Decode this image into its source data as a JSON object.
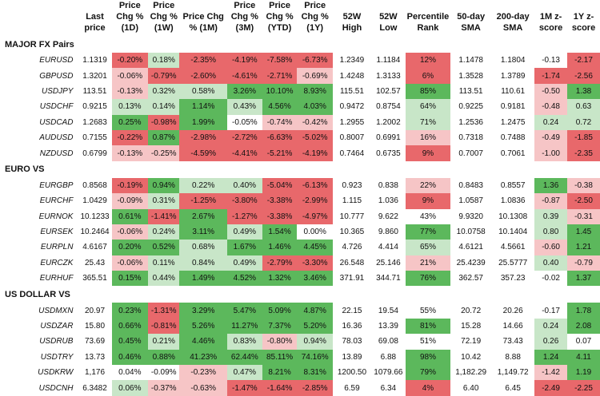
{
  "columns": [
    "",
    "Last price",
    "Price Chg % (1D)",
    "Price Chg % (1W)",
    "Price Chg % (1M)",
    "Price Chg % (3M)",
    "Price Chg % (YTD)",
    "Price Chg % (1Y)",
    "52W High",
    "52W Low",
    "Percentile Rank",
    "50-day SMA",
    "200-day SMA",
    "1M z-score",
    "1Y z-score"
  ],
  "colors": {
    "strong_green": "#5cb85c",
    "light_green": "#c8e6c8",
    "strong_red": "#e8686b",
    "light_red": "#f6c5c6"
  },
  "groups": [
    {
      "title": "MAJOR FX Pairs",
      "rows": [
        {
          "name": "EURUSD",
          "values": [
            "1.1319",
            "-0.20%",
            "0.18%",
            "-2.35%",
            "-4.19%",
            "-7.58%",
            "-6.73%",
            "1.2349",
            "1.1184",
            "12%",
            "1.1478",
            "1.1804",
            "-0.13",
            "-2.17"
          ]
        },
        {
          "name": "GBPUSD",
          "values": [
            "1.3201",
            "-0.06%",
            "-0.79%",
            "-2.60%",
            "-4.61%",
            "-2.71%",
            "-0.69%",
            "1.4248",
            "1.3133",
            "6%",
            "1.3528",
            "1.3789",
            "-1.74",
            "-2.56"
          ]
        },
        {
          "name": "USDJPY",
          "values": [
            "113.51",
            "-0.13%",
            "0.32%",
            "0.58%",
            "3.26%",
            "10.10%",
            "8.93%",
            "115.51",
            "102.57",
            "85%",
            "113.51",
            "110.61",
            "-0.50",
            "1.38"
          ]
        },
        {
          "name": "USDCHF",
          "values": [
            "0.9215",
            "0.13%",
            "0.14%",
            "1.14%",
            "0.43%",
            "4.56%",
            "4.03%",
            "0.9472",
            "0.8754",
            "64%",
            "0.9225",
            "0.9181",
            "-0.48",
            "0.63"
          ]
        },
        {
          "name": "USDCAD",
          "values": [
            "1.2683",
            "0.25%",
            "-0.98%",
            "1.99%",
            "-0.05%",
            "-0.74%",
            "-0.42%",
            "1.2955",
            "1.2002",
            "71%",
            "1.2536",
            "1.2475",
            "0.24",
            "0.72"
          ]
        },
        {
          "name": "AUDUSD",
          "values": [
            "0.7155",
            "-0.22%",
            "0.87%",
            "-2.98%",
            "-2.72%",
            "-6.63%",
            "-5.02%",
            "0.8007",
            "0.6991",
            "16%",
            "0.7318",
            "0.7488",
            "-0.49",
            "-1.85"
          ]
        },
        {
          "name": "NZDUSD",
          "values": [
            "0.6799",
            "-0.13%",
            "-0.25%",
            "-4.59%",
            "-4.41%",
            "-5.21%",
            "-4.19%",
            "0.7464",
            "0.6735",
            "9%",
            "0.7007",
            "0.7061",
            "-1.00",
            "-2.35"
          ]
        }
      ]
    },
    {
      "title": "EURO VS",
      "rows": [
        {
          "name": "EURGBP",
          "values": [
            "0.8568",
            "-0.19%",
            "0.94%",
            "0.22%",
            "0.40%",
            "-5.04%",
            "-6.13%",
            "0.923",
            "0.838",
            "22%",
            "0.8483",
            "0.8557",
            "1.36",
            "-0.38"
          ]
        },
        {
          "name": "EURCHF",
          "values": [
            "1.0429",
            "-0.09%",
            "0.31%",
            "-1.25%",
            "-3.80%",
            "-3.38%",
            "-2.99%",
            "1.115",
            "1.036",
            "9%",
            "1.0587",
            "1.0836",
            "-0.87",
            "-2.50"
          ]
        },
        {
          "name": "EURNOK",
          "values": [
            "10.1233",
            "0.61%",
            "-1.41%",
            "2.67%",
            "-1.27%",
            "-3.38%",
            "-4.97%",
            "10.777",
            "9.622",
            "43%",
            "9.9320",
            "10.1308",
            "0.39",
            "-0.31"
          ]
        },
        {
          "name": "EURSEK",
          "values": [
            "10.2464",
            "-0.06%",
            "0.24%",
            "3.11%",
            "0.49%",
            "1.54%",
            "0.00%",
            "10.365",
            "9.860",
            "77%",
            "10.0758",
            "10.1404",
            "0.80",
            "1.45"
          ]
        },
        {
          "name": "EURPLN",
          "values": [
            "4.6167",
            "0.20%",
            "0.52%",
            "0.68%",
            "1.67%",
            "1.46%",
            "4.45%",
            "4.726",
            "4.414",
            "65%",
            "4.6121",
            "4.5661",
            "-0.60",
            "1.21"
          ]
        },
        {
          "name": "EURCZK",
          "values": [
            "25.43",
            "-0.06%",
            "0.11%",
            "0.84%",
            "0.49%",
            "-2.79%",
            "-3.30%",
            "26.548",
            "25.146",
            "21%",
            "25.4239",
            "25.5777",
            "0.40",
            "-0.79"
          ]
        },
        {
          "name": "EURHUF",
          "values": [
            "365.51",
            "0.15%",
            "0.44%",
            "1.49%",
            "4.52%",
            "1.32%",
            "3.46%",
            "371.91",
            "344.71",
            "76%",
            "362.57",
            "357.23",
            "-0.02",
            "1.37"
          ]
        }
      ]
    },
    {
      "title": "US DOLLAR VS",
      "rows": [
        {
          "name": "USDMXN",
          "values": [
            "20.97",
            "0.23%",
            "-1.31%",
            "3.29%",
            "5.47%",
            "5.09%",
            "4.87%",
            "22.15",
            "19.54",
            "55%",
            "20.72",
            "20.26",
            "-0.17",
            "1.78"
          ]
        },
        {
          "name": "USDZAR",
          "values": [
            "15.80",
            "0.66%",
            "-0.81%",
            "5.26%",
            "11.27%",
            "7.37%",
            "5.20%",
            "16.36",
            "13.39",
            "81%",
            "15.28",
            "14.66",
            "0.24",
            "2.08"
          ]
        },
        {
          "name": "USDRUB",
          "values": [
            "73.69",
            "0.45%",
            "0.21%",
            "4.46%",
            "0.83%",
            "-0.80%",
            "0.94%",
            "78.03",
            "69.08",
            "51%",
            "72.19",
            "73.43",
            "0.26",
            "0.07"
          ]
        },
        {
          "name": "USDTRY",
          "values": [
            "13.73",
            "0.46%",
            "0.88%",
            "41.23%",
            "62.44%",
            "85.11%",
            "74.16%",
            "13.89",
            "6.88",
            "98%",
            "10.42",
            "8.88",
            "1.24",
            "4.11"
          ]
        },
        {
          "name": "USDKRW",
          "values": [
            "1,176",
            "0.04%",
            "-0.09%",
            "-0.23%",
            "0.47%",
            "8.21%",
            "8.31%",
            "1200.50",
            "1079.66",
            "79%",
            "1,182.29",
            "1,149.72",
            "-1.42",
            "1.19"
          ]
        },
        {
          "name": "USDCNH",
          "values": [
            "6.3482",
            "0.06%",
            "-0.37%",
            "-0.63%",
            "-1.47%",
            "-1.64%",
            "-2.85%",
            "6.59",
            "6.34",
            "4%",
            "6.40",
            "6.45",
            "-2.49",
            "-2.25"
          ]
        }
      ]
    }
  ]
}
